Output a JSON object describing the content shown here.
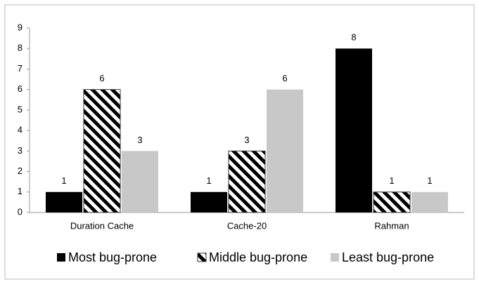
{
  "chart_data": {
    "type": "bar",
    "categories": [
      "Duration Cache",
      "Cache-20",
      "Rahman"
    ],
    "series": [
      {
        "name": "Most bug-prone",
        "color": "#000000",
        "values": [
          1,
          1,
          8
        ]
      },
      {
        "name": "Middle bug-prone",
        "color": "#000000",
        "pattern": "diagonal",
        "values": [
          6,
          3,
          1
        ]
      },
      {
        "name": "Least bug-prone",
        "color": "#c8c8c8",
        "values": [
          3,
          6,
          1
        ]
      }
    ],
    "ylim": [
      0,
      9
    ],
    "yticks": [
      0,
      1,
      2,
      3,
      4,
      5,
      6,
      7,
      8,
      9
    ],
    "grid": false,
    "legend": "bottom"
  }
}
